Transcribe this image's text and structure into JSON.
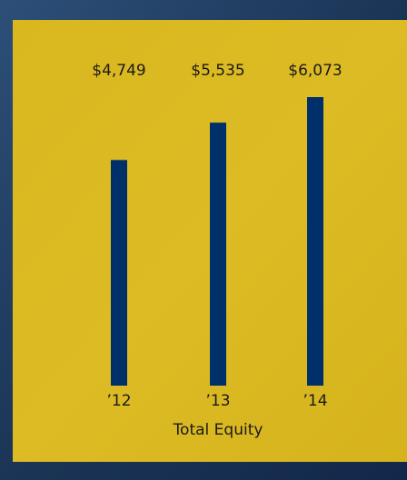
{
  "chart_data": {
    "type": "bar",
    "title": "Total Equity",
    "categories": [
      "’12",
      "’13",
      "’14"
    ],
    "values": [
      4749,
      5535,
      6073
    ],
    "value_labels": [
      "$4,749",
      "$5,535",
      "$6,073"
    ],
    "color": "#00306a"
  }
}
